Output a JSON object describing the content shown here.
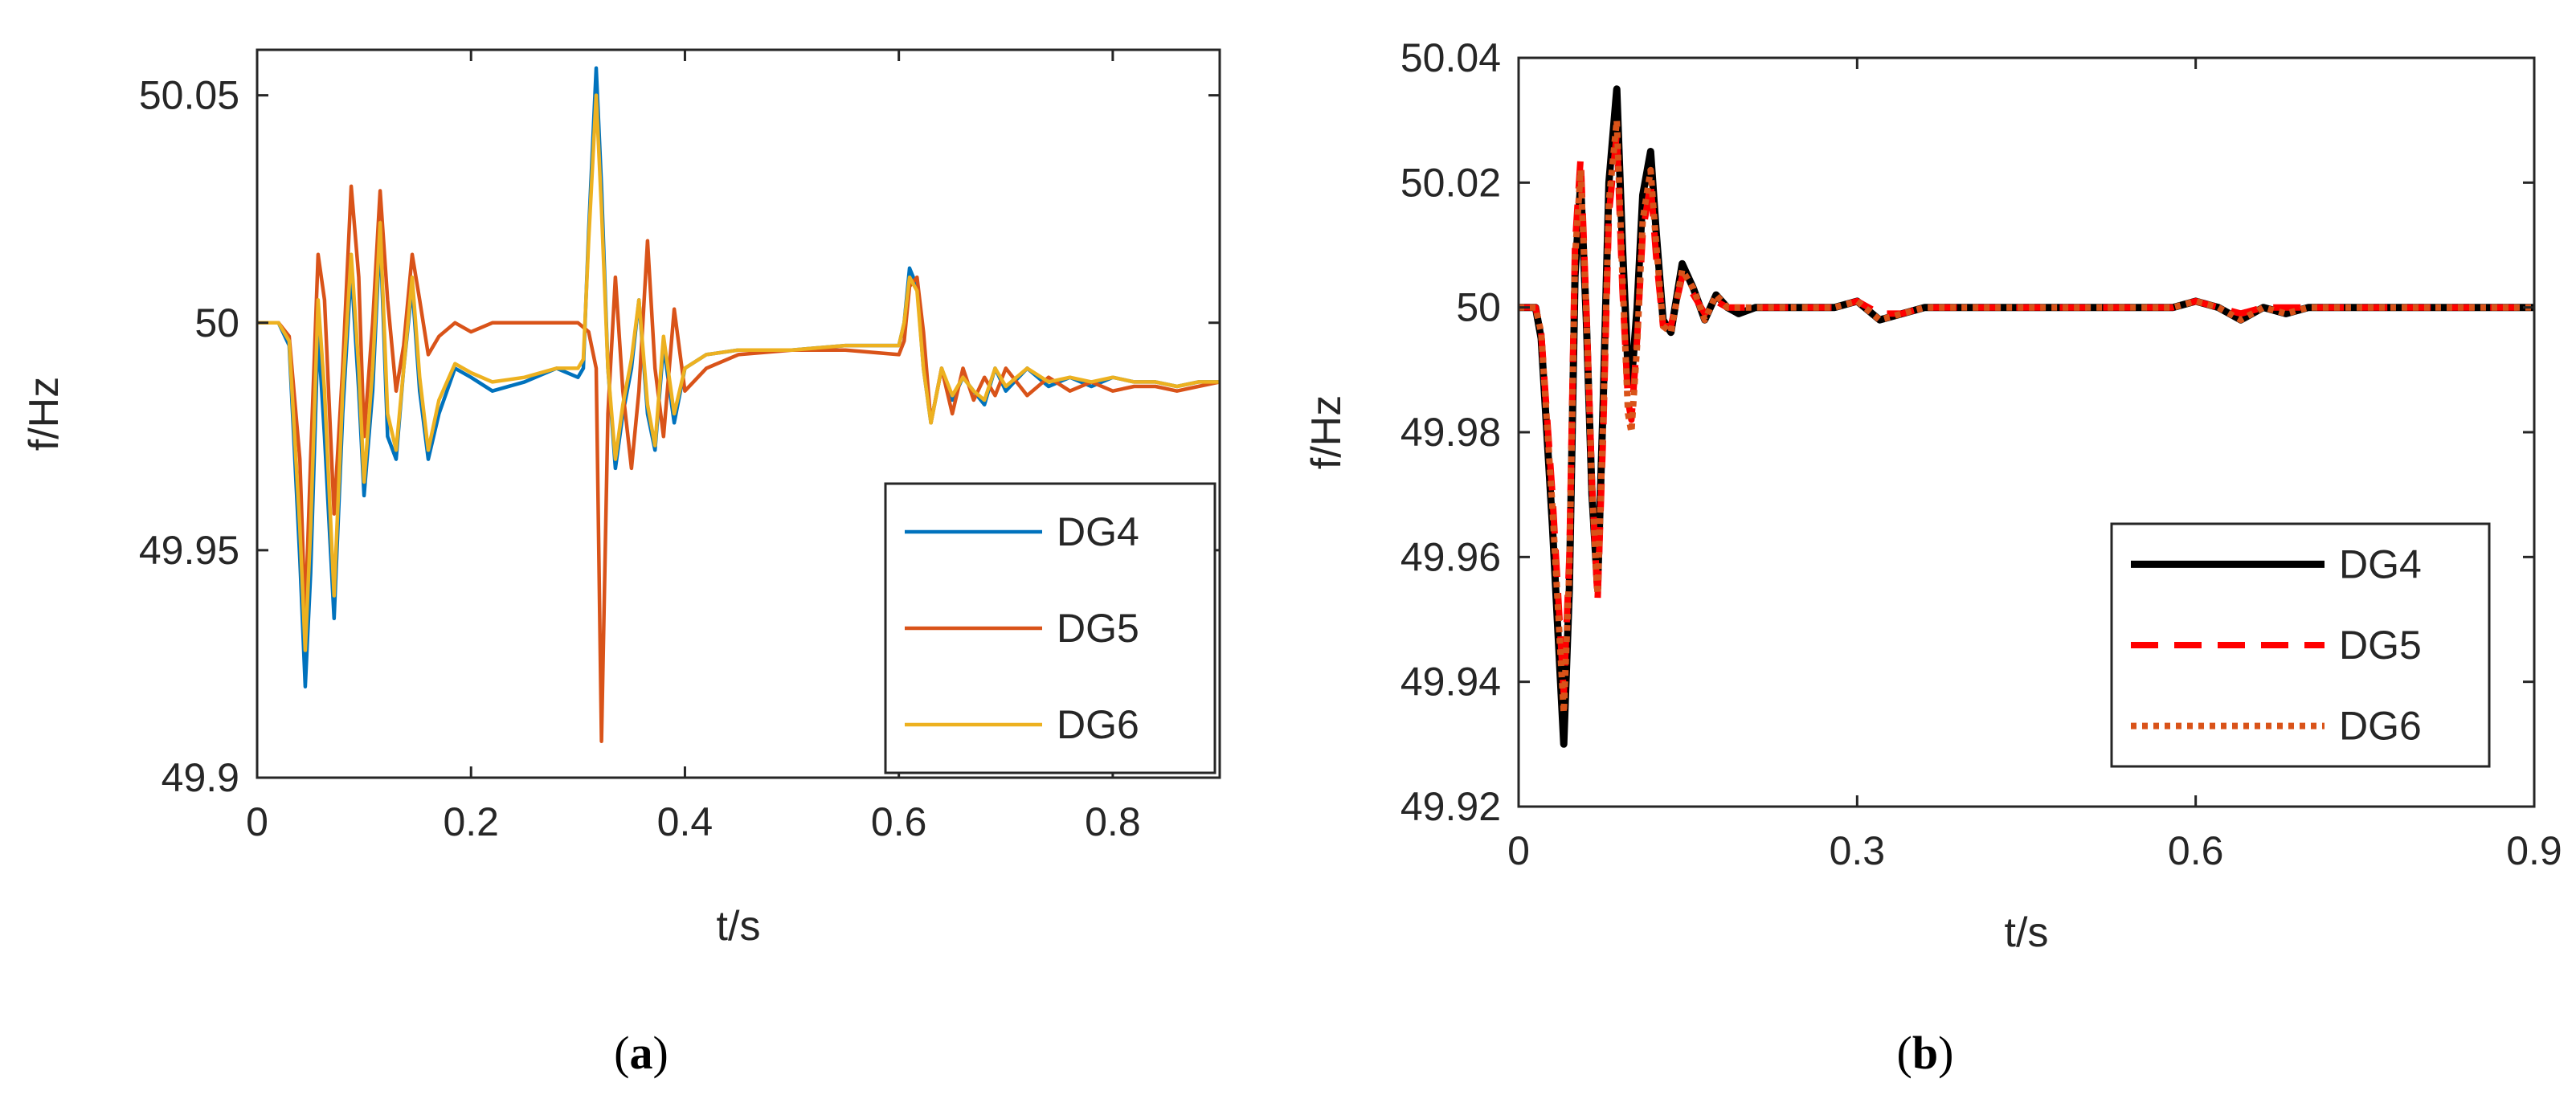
{
  "chart_data": [
    {
      "type": "line",
      "caption": "(a)",
      "caption_letter": "a",
      "xlabel": "t/s",
      "ylabel": "f/Hz",
      "xlim": [
        0,
        0.9
      ],
      "ylim": [
        49.9,
        50.06
      ],
      "xticks": [
        0,
        0.2,
        0.4,
        0.6,
        0.8
      ],
      "xtick_labels": [
        "0",
        "0.2",
        "0.4",
        "0.6",
        "0.8"
      ],
      "yticks": [
        49.9,
        49.95,
        50,
        50.05
      ],
      "ytick_labels": [
        "49.9",
        "49.95",
        "50",
        "50.05"
      ],
      "legend_position": "bottom-right",
      "series": [
        {
          "name": "DG4",
          "color": "#0072BD",
          "style": "solid",
          "x": [
            0,
            0.02,
            0.03,
            0.04,
            0.045,
            0.05,
            0.057,
            0.063,
            0.072,
            0.08,
            0.088,
            0.095,
            0.1,
            0.108,
            0.115,
            0.122,
            0.13,
            0.137,
            0.145,
            0.152,
            0.16,
            0.17,
            0.185,
            0.2,
            0.22,
            0.25,
            0.28,
            0.3,
            0.305,
            0.31,
            0.317,
            0.322,
            0.328,
            0.335,
            0.342,
            0.35,
            0.357,
            0.365,
            0.372,
            0.38,
            0.39,
            0.4,
            0.42,
            0.45,
            0.5,
            0.55,
            0.6,
            0.605,
            0.61,
            0.617,
            0.623,
            0.63,
            0.64,
            0.65,
            0.66,
            0.67,
            0.68,
            0.69,
            0.7,
            0.72,
            0.74,
            0.76,
            0.78,
            0.8,
            0.82,
            0.84,
            0.86,
            0.88,
            0.9
          ],
          "y": [
            50.0,
            50.0,
            49.995,
            49.948,
            49.92,
            49.945,
            49.998,
            49.975,
            49.935,
            49.98,
            50.012,
            49.985,
            49.962,
            49.985,
            50.02,
            49.975,
            49.97,
            49.99,
            50.008,
            49.985,
            49.97,
            49.98,
            49.99,
            49.988,
            49.985,
            49.987,
            49.99,
            49.988,
            49.99,
            50.02,
            50.056,
            50.03,
            49.99,
            49.968,
            49.98,
            49.99,
            50.005,
            49.98,
            49.972,
            49.995,
            49.978,
            49.99,
            49.993,
            49.994,
            49.994,
            49.995,
            49.995,
            50.0,
            50.012,
            50.008,
            49.99,
            49.978,
            49.99,
            49.983,
            49.988,
            49.985,
            49.982,
            49.99,
            49.985,
            49.99,
            49.986,
            49.988,
            49.986,
            49.988,
            49.987,
            49.987,
            49.986,
            49.987,
            49.987
          ]
        },
        {
          "name": "DG5",
          "color": "#D95319",
          "style": "solid",
          "x": [
            0,
            0.02,
            0.03,
            0.04,
            0.045,
            0.05,
            0.057,
            0.063,
            0.072,
            0.08,
            0.088,
            0.095,
            0.1,
            0.108,
            0.115,
            0.122,
            0.13,
            0.137,
            0.145,
            0.152,
            0.16,
            0.17,
            0.185,
            0.2,
            0.22,
            0.25,
            0.28,
            0.3,
            0.305,
            0.31,
            0.317,
            0.322,
            0.328,
            0.335,
            0.342,
            0.35,
            0.357,
            0.365,
            0.372,
            0.38,
            0.39,
            0.4,
            0.42,
            0.45,
            0.5,
            0.55,
            0.6,
            0.605,
            0.61,
            0.617,
            0.623,
            0.63,
            0.64,
            0.65,
            0.66,
            0.67,
            0.68,
            0.69,
            0.7,
            0.72,
            0.74,
            0.76,
            0.78,
            0.8,
            0.82,
            0.84,
            0.86,
            0.88,
            0.9
          ],
          "y": [
            50.0,
            50.0,
            49.997,
            49.97,
            49.935,
            49.97,
            50.015,
            50.005,
            49.958,
            49.99,
            50.03,
            50.01,
            49.975,
            50.0,
            50.029,
            50.005,
            49.985,
            49.995,
            50.015,
            50.005,
            49.993,
            49.997,
            50.0,
            49.998,
            50.0,
            50.0,
            50.0,
            50.0,
            49.999,
            49.998,
            49.99,
            49.908,
            49.98,
            50.01,
            49.985,
            49.968,
            49.985,
            50.018,
            49.99,
            49.975,
            50.003,
            49.985,
            49.99,
            49.993,
            49.994,
            49.994,
            49.993,
            49.996,
            50.008,
            50.01,
            49.998,
            49.978,
            49.99,
            49.98,
            49.99,
            49.983,
            49.988,
            49.984,
            49.99,
            49.984,
            49.988,
            49.985,
            49.987,
            49.985,
            49.986,
            49.986,
            49.985,
            49.986,
            49.987
          ]
        },
        {
          "name": "DG6",
          "color": "#EDB120",
          "style": "solid",
          "x": [
            0,
            0.02,
            0.03,
            0.04,
            0.045,
            0.05,
            0.057,
            0.063,
            0.072,
            0.08,
            0.088,
            0.095,
            0.1,
            0.108,
            0.115,
            0.122,
            0.13,
            0.137,
            0.145,
            0.152,
            0.16,
            0.17,
            0.185,
            0.2,
            0.22,
            0.25,
            0.28,
            0.3,
            0.305,
            0.31,
            0.317,
            0.322,
            0.328,
            0.335,
            0.342,
            0.35,
            0.357,
            0.365,
            0.372,
            0.38,
            0.39,
            0.4,
            0.42,
            0.45,
            0.5,
            0.55,
            0.6,
            0.605,
            0.61,
            0.617,
            0.623,
            0.63,
            0.64,
            0.65,
            0.66,
            0.67,
            0.68,
            0.69,
            0.7,
            0.72,
            0.74,
            0.76,
            0.78,
            0.8,
            0.82,
            0.84,
            0.86,
            0.88,
            0.9
          ],
          "y": [
            50.0,
            50.0,
            49.996,
            49.955,
            49.928,
            49.955,
            50.005,
            49.985,
            49.94,
            49.985,
            50.015,
            49.99,
            49.965,
            49.99,
            50.022,
            49.98,
            49.972,
            49.99,
            50.01,
            49.988,
            49.972,
            49.983,
            49.991,
            49.989,
            49.987,
            49.988,
            49.99,
            49.99,
            49.992,
            50.018,
            50.05,
            50.025,
            49.99,
            49.97,
            49.982,
            49.992,
            50.005,
            49.982,
            49.973,
            49.997,
            49.98,
            49.99,
            49.993,
            49.994,
            49.994,
            49.995,
            49.995,
            50.0,
            50.01,
            50.007,
            49.99,
            49.978,
            49.99,
            49.984,
            49.988,
            49.985,
            49.983,
            49.99,
            49.986,
            49.99,
            49.987,
            49.988,
            49.987,
            49.988,
            49.987,
            49.987,
            49.986,
            49.987,
            49.987
          ]
        }
      ]
    },
    {
      "type": "line",
      "caption": "(b)",
      "caption_letter": "b",
      "xlabel": "t/s",
      "ylabel": "f/Hz",
      "xlim": [
        0,
        0.9
      ],
      "ylim": [
        49.92,
        50.04
      ],
      "xticks": [
        0,
        0.3,
        0.6,
        0.9
      ],
      "xtick_labels": [
        "0",
        "0.3",
        "0.6",
        "0.9"
      ],
      "yticks": [
        49.92,
        49.94,
        49.96,
        49.98,
        50,
        50.02,
        50.04
      ],
      "ytick_labels": [
        "49.92",
        "49.94",
        "49.96",
        "49.98",
        "50",
        "50.02",
        "50.04"
      ],
      "legend_position": "bottom-right",
      "series": [
        {
          "name": "DG4",
          "color": "#000000",
          "style": "solid",
          "x": [
            0,
            0.005,
            0.01,
            0.015,
            0.02,
            0.03,
            0.04,
            0.045,
            0.05,
            0.055,
            0.06,
            0.065,
            0.07,
            0.075,
            0.08,
            0.087,
            0.092,
            0.097,
            0.1,
            0.105,
            0.11,
            0.117,
            0.122,
            0.128,
            0.135,
            0.145,
            0.155,
            0.165,
            0.175,
            0.185,
            0.195,
            0.21,
            0.23,
            0.26,
            0.28,
            0.3,
            0.32,
            0.34,
            0.36,
            0.4,
            0.45,
            0.5,
            0.55,
            0.58,
            0.6,
            0.62,
            0.64,
            0.66,
            0.68,
            0.7,
            0.72,
            0.75,
            0.8,
            0.85,
            0.9
          ],
          "y": [
            50.0,
            50.0,
            50.0,
            50.0,
            49.995,
            49.965,
            49.93,
            49.955,
            50.005,
            50.02,
            49.998,
            49.97,
            49.955,
            49.985,
            50.02,
            50.035,
            50.01,
            49.99,
            49.988,
            50.0,
            50.018,
            50.025,
            50.012,
            49.998,
            49.996,
            50.007,
            50.003,
            49.998,
            50.002,
            50.0,
            49.999,
            50.0,
            50.0,
            50.0,
            50.0,
            50.001,
            49.998,
            49.999,
            50.0,
            50.0,
            50.0,
            50.0,
            50.0,
            50.0,
            50.001,
            50.0,
            49.998,
            50.0,
            49.999,
            50.0,
            50.0,
            50.0,
            50.0,
            50.0,
            50.0
          ]
        },
        {
          "name": "DG5",
          "color": "#FF0000",
          "style": "dashed",
          "x": [
            0,
            0.005,
            0.01,
            0.015,
            0.02,
            0.03,
            0.04,
            0.045,
            0.05,
            0.055,
            0.06,
            0.065,
            0.07,
            0.075,
            0.08,
            0.087,
            0.092,
            0.097,
            0.1,
            0.105,
            0.11,
            0.117,
            0.122,
            0.128,
            0.135,
            0.145,
            0.155,
            0.165,
            0.175,
            0.185,
            0.195,
            0.21,
            0.23,
            0.26,
            0.28,
            0.3,
            0.32,
            0.34,
            0.36,
            0.4,
            0.45,
            0.5,
            0.55,
            0.58,
            0.6,
            0.62,
            0.64,
            0.66,
            0.68,
            0.7,
            0.72,
            0.75,
            0.8,
            0.85,
            0.9
          ],
          "y": [
            50.0,
            50.0,
            50.0,
            50.0,
            49.996,
            49.97,
            49.938,
            49.96,
            50.01,
            50.024,
            50.0,
            49.972,
            49.953,
            49.98,
            50.015,
            50.028,
            50.003,
            49.985,
            49.982,
            49.995,
            50.012,
            50.02,
            50.008,
            49.997,
            49.997,
            50.005,
            50.002,
            49.999,
            50.001,
            50.0,
            50.0,
            50.0,
            50.0,
            50.0,
            50.0,
            50.001,
            49.999,
            49.999,
            50.0,
            50.0,
            50.0,
            50.0,
            50.0,
            50.0,
            50.001,
            50.0,
            49.999,
            50.0,
            50.0,
            50.0,
            50.0,
            50.0,
            50.0,
            50.0,
            50.0
          ]
        },
        {
          "name": "DG6",
          "color": "#D95319",
          "style": "dotted",
          "x": [
            0,
            0.005,
            0.01,
            0.015,
            0.02,
            0.03,
            0.04,
            0.045,
            0.05,
            0.055,
            0.06,
            0.065,
            0.07,
            0.075,
            0.08,
            0.087,
            0.092,
            0.097,
            0.1,
            0.105,
            0.11,
            0.117,
            0.122,
            0.128,
            0.135,
            0.145,
            0.155,
            0.165,
            0.175,
            0.185,
            0.195,
            0.21,
            0.23,
            0.26,
            0.28,
            0.3,
            0.32,
            0.34,
            0.36,
            0.4,
            0.45,
            0.5,
            0.55,
            0.58,
            0.6,
            0.62,
            0.64,
            0.66,
            0.68,
            0.7,
            0.72,
            0.75,
            0.8,
            0.85,
            0.9
          ],
          "y": [
            50.0,
            50.0,
            50.0,
            50.0,
            49.996,
            49.968,
            49.935,
            49.958,
            50.008,
            50.022,
            49.999,
            49.971,
            49.954,
            49.982,
            50.017,
            50.03,
            50.005,
            49.983,
            49.98,
            49.994,
            50.014,
            50.022,
            50.01,
            49.997,
            49.996,
            50.006,
            50.003,
            49.998,
            50.002,
            50.0,
            50.0,
            50.0,
            50.0,
            50.0,
            50.0,
            50.001,
            49.998,
            49.999,
            50.0,
            50.0,
            50.0,
            50.0,
            50.0,
            50.0,
            50.001,
            50.0,
            49.998,
            50.0,
            49.999,
            50.0,
            50.0,
            50.0,
            50.0,
            50.0,
            50.0
          ]
        }
      ]
    }
  ]
}
